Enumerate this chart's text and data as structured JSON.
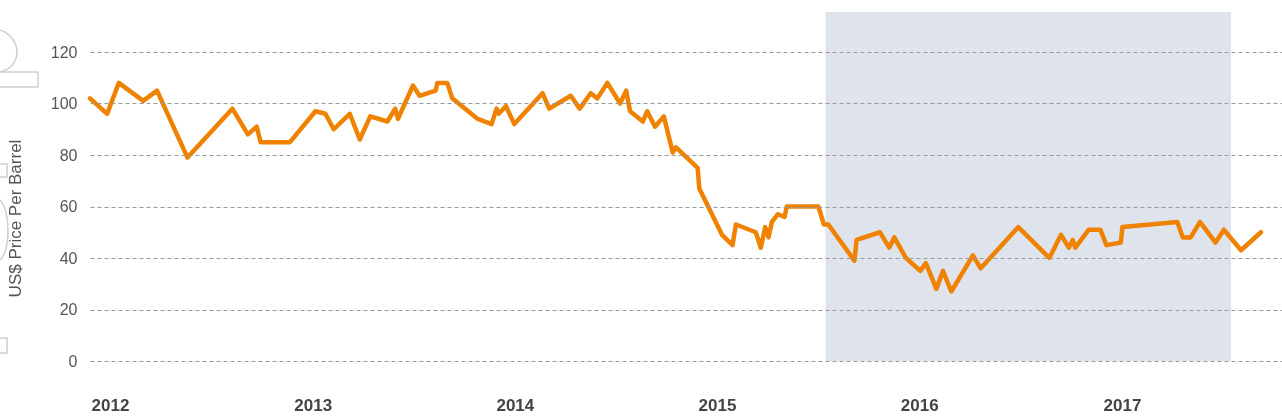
{
  "chart_data": {
    "type": "line",
    "ylabel": "US$ Price Per Barrel",
    "x": [
      "2011-11-26",
      "2011-12-27",
      "2012-01-17",
      "2012-03-01",
      "2012-03-26",
      "2012-05-20",
      "2012-08-09",
      "2012-09-06",
      "2012-09-22",
      "2012-09-29",
      "2012-11-21",
      "2013-01-06",
      "2013-01-24",
      "2013-02-08",
      "2013-03-09",
      "2013-03-27",
      "2013-04-15",
      "2013-05-16",
      "2013-05-30",
      "2013-06-04",
      "2013-07-01",
      "2013-07-13",
      "2013-08-11",
      "2013-08-14",
      "2013-09-01",
      "2013-09-10",
      "2013-10-26",
      "2013-11-20",
      "2013-11-29",
      "2013-12-03",
      "2013-12-16",
      "2013-12-31",
      "2014-02-20",
      "2014-03-04",
      "2014-04-12",
      "2014-04-28",
      "2014-05-18",
      "2014-05-30",
      "2014-06-17",
      "2014-07-10",
      "2014-07-21",
      "2014-07-28",
      "2014-08-20",
      "2014-08-28",
      "2014-09-11",
      "2014-09-27",
      "2014-10-13",
      "2014-10-19",
      "2014-11-27",
      "2014-11-30",
      "2015-01-10",
      "2015-01-29",
      "2015-02-04",
      "2015-03-12",
      "2015-03-21",
      "2015-03-29",
      "2015-04-04",
      "2015-04-10",
      "2015-04-21",
      "2015-05-03",
      "2015-05-07",
      "2015-07-03",
      "2015-07-13",
      "2015-07-21",
      "2015-09-06",
      "2015-09-10",
      "2015-10-22",
      "2015-11-08",
      "2015-11-17",
      "2015-12-08",
      "2016-01-03",
      "2016-01-13",
      "2016-02-01",
      "2016-02-13",
      "2016-02-28",
      "2016-04-07",
      "2016-04-21",
      "2016-06-28",
      "2016-08-23",
      "2016-09-13",
      "2016-09-27",
      "2016-10-04",
      "2016-10-09",
      "2016-11-02",
      "2016-11-23",
      "2016-12-04",
      "2016-12-30",
      "2017-01-02",
      "2017-04-11",
      "2017-04-21",
      "2017-05-05",
      "2017-05-22",
      "2017-06-19",
      "2017-07-04",
      "2017-08-04",
      "2017-09-09"
    ],
    "series": [
      {
        "color": "#ef8200",
        "values": [
          102,
          96,
          108,
          101,
          105,
          79,
          98,
          88,
          91,
          85,
          85,
          97,
          96,
          90,
          96,
          86,
          95,
          93,
          98,
          94,
          107,
          103,
          105,
          108,
          108,
          102,
          94,
          92,
          98,
          96,
          99,
          92,
          104,
          98,
          103,
          98,
          104,
          102,
          108,
          100,
          105,
          97,
          93,
          97,
          91,
          95,
          81,
          83,
          75,
          67,
          49,
          45,
          53,
          50,
          44,
          52,
          48,
          54,
          57,
          56,
          60,
          60,
          53,
          53,
          39,
          47,
          50,
          44,
          48,
          40,
          35,
          38,
          28,
          35,
          27,
          41,
          36,
          52,
          40,
          49,
          44,
          47,
          44,
          51,
          51,
          45,
          46,
          52,
          54,
          48,
          48,
          54,
          46,
          51,
          43,
          50
        ]
      }
    ],
    "xlim": [
      "2011-11-26",
      "2017-10-17"
    ],
    "xticks": [
      "2012",
      "2013",
      "2014",
      "2015",
      "2016",
      "2017"
    ],
    "ylim": [
      0,
      120
    ],
    "yticks": [
      0,
      20,
      40,
      60,
      80,
      100,
      120
    ],
    "grid": "y",
    "bands": [
      {
        "axis": "x",
        "from": "2015-07-16",
        "to": "2017-07-17",
        "color": "#dfe3ec"
      }
    ]
  }
}
